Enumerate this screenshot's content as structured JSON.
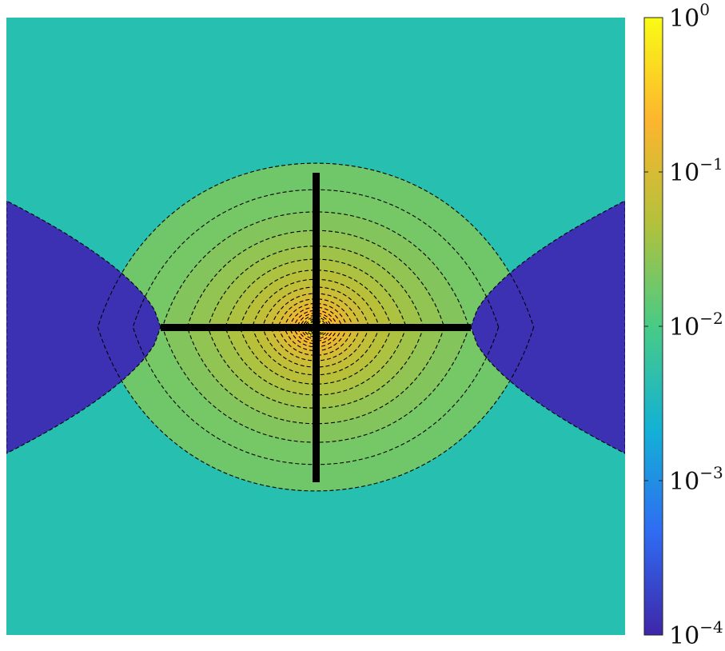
{
  "chart_data": {
    "type": "heatmap",
    "plot": "filled contour map of a field with a log color scale",
    "title": "",
    "xlabel": "",
    "ylabel": "",
    "colorbar": {
      "scale": "log",
      "range": [
        0.0001,
        1
      ],
      "ticks": [
        {
          "value": 1,
          "base": "10",
          "exp": "0"
        },
        {
          "value": 0.1,
          "base": "10",
          "exp": "−1"
        },
        {
          "value": 0.01,
          "base": "10",
          "exp": "−2"
        },
        {
          "value": 0.001,
          "base": "10",
          "exp": "−3"
        },
        {
          "value": 0.0001,
          "base": "10",
          "exp": "−4"
        }
      ],
      "colors": [
        "#3e26a8",
        "#2f6cf3",
        "#13b1d5",
        "#48cb86",
        "#b3c13b",
        "#fdb52e",
        "#f9fb15"
      ]
    },
    "contour_lines": {
      "style": "dashed",
      "color": "#000000"
    },
    "cross_marker": {
      "color": "#000000",
      "arms": [
        "horizontal",
        "vertical"
      ]
    },
    "grid": false,
    "legend": "none"
  }
}
